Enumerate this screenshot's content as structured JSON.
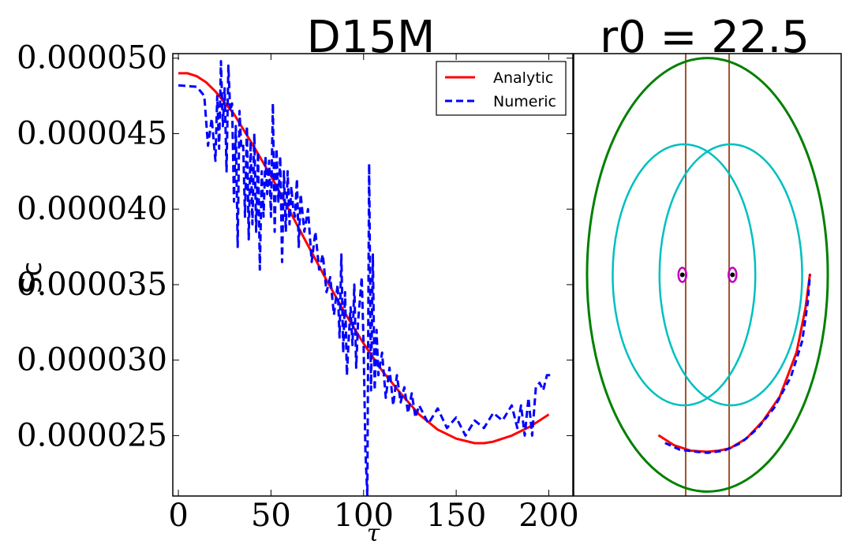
{
  "chart_data": [
    {
      "type": "line",
      "title": "D15M",
      "xlabel": "τ",
      "ylabel": "Sc",
      "xlim": [
        -3,
        213
      ],
      "ylim": [
        2.1e-05,
        5.03e-05
      ],
      "xticks": [
        0,
        50,
        100,
        150,
        200
      ],
      "xtick_labels": [
        "0",
        "50",
        "100",
        "150",
        "200"
      ],
      "yticks": [
        2.5e-05,
        3e-05,
        3.5e-05,
        4e-05,
        4.5e-05,
        5e-05
      ],
      "ytick_labels": [
        "0.000025",
        "0.000030",
        "0.000035",
        "0.000040",
        "0.000045",
        "0.000050"
      ],
      "legend": {
        "position": "top-right",
        "entries": [
          "Analytic",
          "Numeric"
        ]
      },
      "series": [
        {
          "name": "Analytic",
          "color": "#ff0000",
          "style": "solid",
          "x": [
            0,
            5,
            10,
            15,
            20,
            30,
            40,
            50,
            60,
            70,
            80,
            90,
            100,
            110,
            120,
            130,
            140,
            150,
            160,
            165,
            170,
            180,
            190,
            200
          ],
          "y": [
            4.9e-05,
            4.9e-05,
            4.88e-05,
            4.84e-05,
            4.78e-05,
            4.63e-05,
            4.43e-05,
            4.22e-05,
            3.99e-05,
            3.76e-05,
            3.53e-05,
            3.31e-05,
            3.11e-05,
            2.93e-05,
            2.78e-05,
            2.64e-05,
            2.54e-05,
            2.48e-05,
            2.45e-05,
            2.45e-05,
            2.46e-05,
            2.5e-05,
            2.56e-05,
            2.64e-05
          ]
        },
        {
          "name": "Numeric",
          "color": "#0000ff",
          "style": "dashed",
          "x": [
            0,
            10,
            14,
            16,
            18,
            20,
            21,
            22,
            23,
            24,
            25,
            26,
            27,
            28,
            29,
            30,
            31,
            32,
            33,
            34,
            35,
            36,
            37,
            38,
            39,
            40,
            41,
            42,
            43,
            44,
            45,
            46,
            47,
            48,
            49,
            50,
            51,
            52,
            53,
            54,
            55,
            56,
            57,
            58,
            59,
            60,
            61,
            62,
            63,
            64,
            65,
            66,
            68,
            70,
            72,
            74,
            76,
            78,
            80,
            82,
            84,
            86,
            87,
            88,
            89,
            90,
            91,
            92,
            93,
            94,
            95,
            96,
            97,
            98,
            99,
            100,
            101,
            102,
            103,
            104,
            105,
            106,
            107,
            108,
            110,
            112,
            114,
            116,
            118,
            120,
            122,
            124,
            126,
            128,
            130,
            135,
            140,
            145,
            150,
            155,
            160,
            165,
            170,
            175,
            180,
            183,
            185,
            187,
            189,
            191,
            193,
            195,
            197,
            199,
            201
          ],
          "y": [
            4.82e-05,
            4.81e-05,
            4.75e-05,
            4.42e-05,
            4.6e-05,
            4.32e-05,
            4.75e-05,
            4.4e-05,
            4.98e-05,
            4.55e-05,
            4.8e-05,
            4.25e-05,
            4.95e-05,
            4.65e-05,
            4.7e-05,
            4.05e-05,
            4.55e-05,
            3.75e-05,
            4.65e-05,
            4.4e-05,
            4.42e-05,
            3.95e-05,
            4.55e-05,
            3.8e-05,
            4.45e-05,
            3.9e-05,
            4.5e-05,
            3.85e-05,
            4.38e-05,
            3.6e-05,
            4.25e-05,
            3.95e-05,
            4.35e-05,
            4.1e-05,
            4.32e-05,
            3.95e-05,
            4.7e-05,
            3.85e-05,
            4.4e-05,
            4.05e-05,
            4.35e-05,
            3.65e-05,
            4.25e-05,
            3.85e-05,
            4.25e-05,
            3.9e-05,
            4.15e-05,
            4e-05,
            3.95e-05,
            4.2e-05,
            3.75e-05,
            4.1e-05,
            3.85e-05,
            4e-05,
            3.65e-05,
            3.85e-05,
            3.6e-05,
            3.7e-05,
            3.45e-05,
            3.55e-05,
            3.3e-05,
            3.5e-05,
            3.15e-05,
            3.7e-05,
            3.05e-05,
            3.45e-05,
            2.9e-05,
            3.15e-05,
            3.35e-05,
            3.1e-05,
            3.5e-05,
            2.95e-05,
            3.25e-05,
            3.4e-05,
            3.55e-05,
            3.1e-05,
            2.4e-05,
            2.1e-05,
            4.3e-05,
            2.8e-05,
            3.7e-05,
            2.8e-05,
            3.2e-05,
            2.9e-05,
            3.05e-05,
            2.75e-05,
            2.95e-05,
            2.7e-05,
            2.9e-05,
            2.72e-05,
            2.82e-05,
            2.65e-05,
            2.78e-05,
            2.62e-05,
            2.7e-05,
            2.58e-05,
            2.68e-05,
            2.55e-05,
            2.62e-05,
            2.5e-05,
            2.6e-05,
            2.55e-05,
            2.65e-05,
            2.6e-05,
            2.7e-05,
            2.55e-05,
            2.7e-05,
            2.5e-05,
            2.75e-05,
            2.5e-05,
            2.82e-05,
            2.85e-05,
            2.8e-05,
            2.9e-05,
            2.9e-05
          ]
        }
      ]
    },
    {
      "type": "diagram",
      "title": "r0 = 22.5",
      "xlim": [
        -120,
        120
      ],
      "ylim": [
        -200,
        200
      ],
      "elements": {
        "outer_ellipse": {
          "color": "#008000",
          "cx": 0,
          "cy": 0,
          "rx": 108,
          "ry": 196
        },
        "inner_ellipses": [
          {
            "color": "#00bfbf",
            "cx": -21,
            "cy": 0,
            "rx": 64,
            "ry": 118
          },
          {
            "color": "#00bfbf",
            "cx": 21,
            "cy": 0,
            "rx": 64,
            "ry": 118
          }
        ],
        "vertical_lines": [
          {
            "color": "#a0522d",
            "x": -19.5
          },
          {
            "color": "#a0522d",
            "x": 19.5
          }
        ],
        "eyes": [
          {
            "color": "#bf00bf",
            "x": -22.5,
            "y": 0
          },
          {
            "color": "#bf00bf",
            "x": 22.5,
            "y": 0
          }
        ],
        "analytic_curve": {
          "color": "#ff0000",
          "x": [
            -44,
            -30,
            -15,
            0,
            10,
            20,
            35,
            50,
            65,
            80,
            88,
            92
          ],
          "y": [
            -145,
            -154,
            -159,
            -160,
            -159,
            -157,
            -148,
            -132,
            -110,
            -70,
            -30,
            1
          ]
        },
        "numeric_curve": {
          "color": "#0000ff",
          "x": [
            -38,
            -25,
            -10,
            0,
            15,
            30,
            45,
            60,
            75,
            85,
            90,
            92
          ],
          "y": [
            -152,
            -158,
            -160,
            -161,
            -159,
            -152,
            -139,
            -120,
            -92,
            -60,
            -25,
            0
          ]
        }
      }
    }
  ]
}
